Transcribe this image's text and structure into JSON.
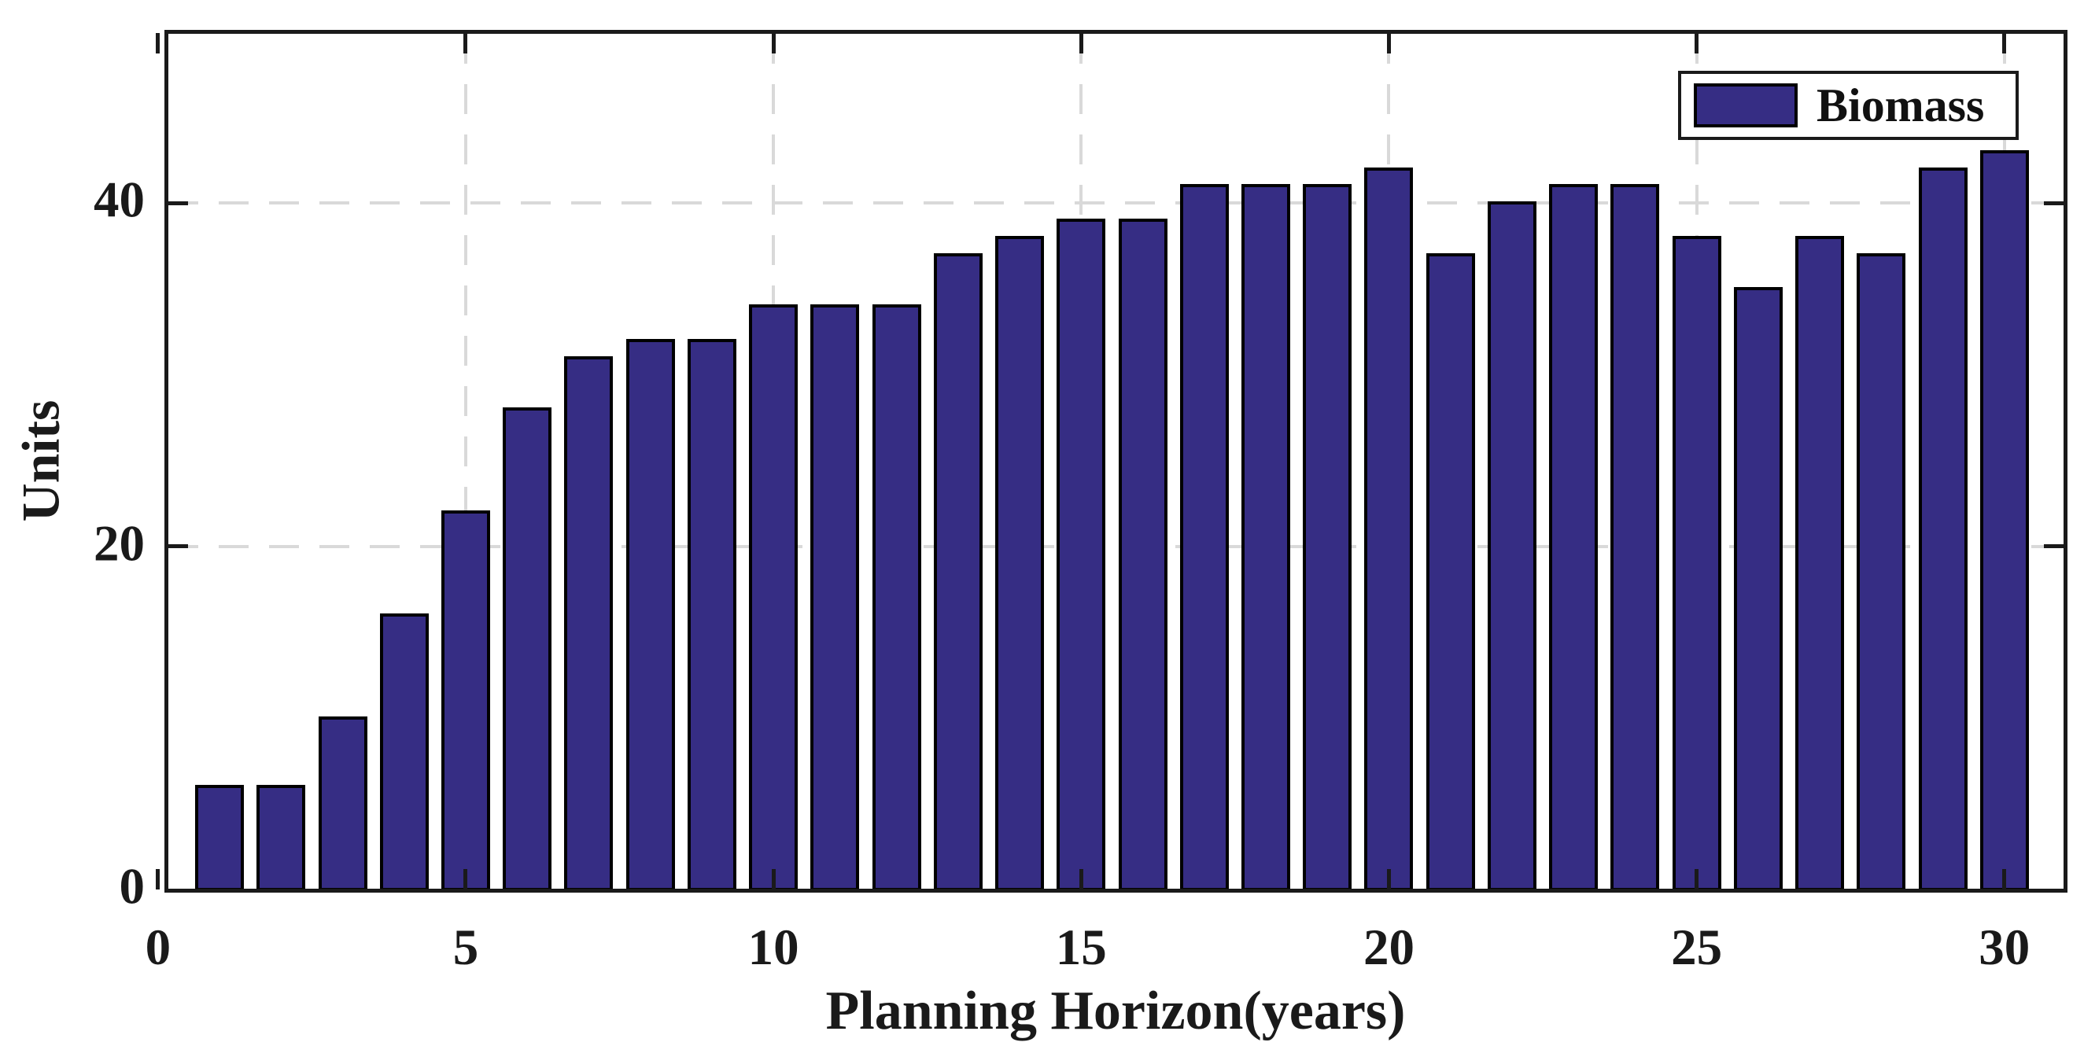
{
  "chart_data": {
    "type": "bar",
    "title": "",
    "xlabel": "Planning Horizon(years)",
    "ylabel": "Units",
    "x": [
      1,
      2,
      3,
      4,
      5,
      6,
      7,
      8,
      9,
      10,
      11,
      12,
      13,
      14,
      15,
      16,
      17,
      18,
      19,
      20,
      21,
      22,
      23,
      24,
      25,
      26,
      27,
      28,
      29,
      30
    ],
    "series": [
      {
        "name": "Biomass",
        "values": [
          6,
          6,
          10,
          16,
          22,
          28,
          31,
          32,
          32,
          34,
          34,
          34,
          37,
          38,
          39,
          39,
          41,
          41,
          41,
          42,
          37,
          40,
          41,
          41,
          38,
          35,
          38,
          37,
          42,
          43
        ]
      }
    ],
    "xticks": [
      0,
      5,
      10,
      15,
      20,
      25,
      30
    ],
    "xtick_labels": [
      "0",
      "5",
      "10",
      "15",
      "20",
      "25",
      "30"
    ],
    "yticks": [
      0,
      20,
      40
    ],
    "ytick_labels": [
      "0",
      "20",
      "40"
    ],
    "xlim": [
      0.13,
      31.0
    ],
    "ylim": [
      0,
      50
    ],
    "grid": true,
    "grid_style": "dashed",
    "legend": {
      "position": "top-right",
      "entries": [
        {
          "label": "Biomass",
          "color": "#362D84"
        }
      ]
    },
    "bar_color": "#362D84",
    "bar_edge_color": "#000000",
    "grid_color": "#d9d9d9",
    "axis_color": "#1a1a1a",
    "background_color": "#ffffff"
  }
}
